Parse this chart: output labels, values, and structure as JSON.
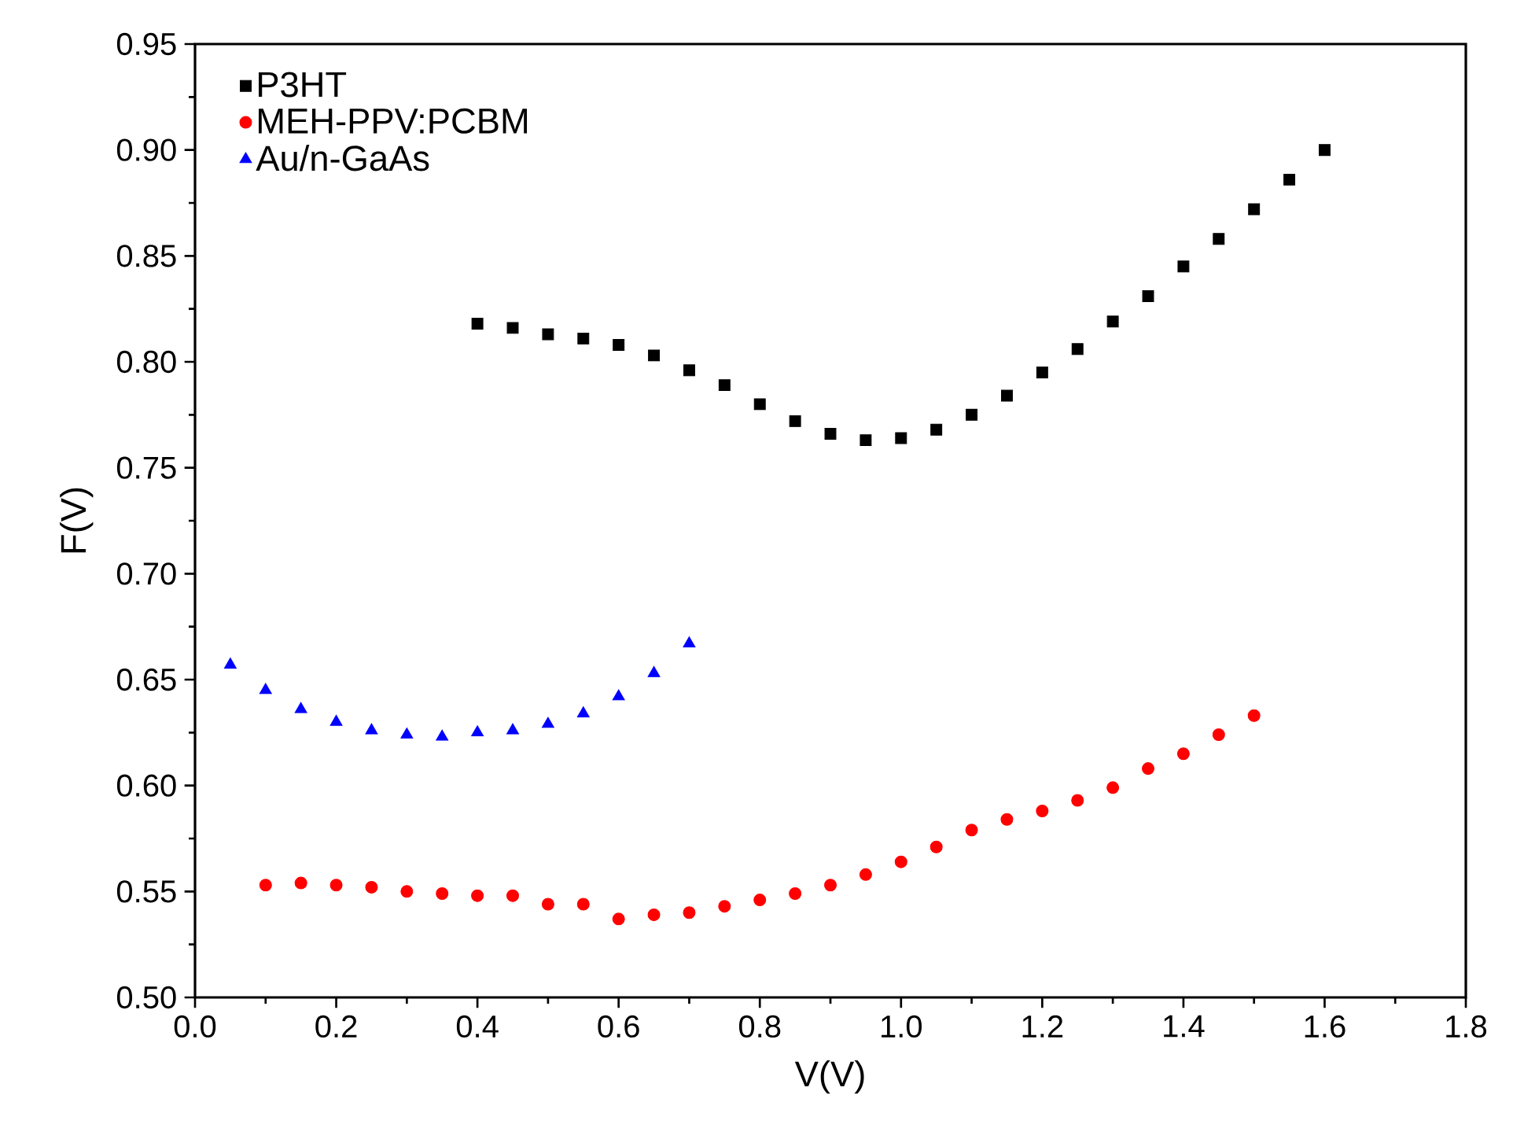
{
  "chart_data": {
    "type": "scatter",
    "xlabel": "V(V)",
    "ylabel": "F(V)",
    "xlim": [
      0.0,
      1.8
    ],
    "xticks": [
      {
        "value": 0.0,
        "label": "0.0"
      },
      0.2,
      0.4,
      0.6,
      0.8,
      {
        "value": 1.0,
        "label": "1.0"
      },
      1.2,
      1.4,
      1.6,
      1.8
    ],
    "ylim": [
      0.5,
      0.95
    ],
    "yticks": [
      {
        "value": 0.5,
        "label": "0.50"
      },
      0.55,
      {
        "value": 0.6,
        "label": "0.60"
      },
      0.65,
      {
        "value": 0.7,
        "label": "0.70"
      },
      0.75,
      {
        "value": 0.8,
        "label": "0.80"
      },
      0.85,
      {
        "value": 0.9,
        "label": "0.90"
      },
      0.95
    ],
    "legend": "top left",
    "grid": false,
    "series": [
      {
        "name": "P3HT",
        "color": "#000000",
        "marker": "square",
        "x": [
          0.4,
          0.45,
          0.5,
          0.55,
          0.6,
          0.65,
          0.7,
          0.75,
          0.8,
          0.85,
          0.9,
          0.95,
          1.0,
          1.05,
          1.1,
          1.15,
          1.2,
          1.25,
          1.3,
          1.35,
          1.4,
          1.45,
          1.5,
          1.55,
          1.6
        ],
        "values": [
          0.818,
          0.816,
          0.813,
          0.811,
          0.808,
          0.803,
          0.796,
          0.789,
          0.78,
          0.772,
          0.766,
          0.763,
          0.764,
          0.768,
          0.775,
          0.784,
          0.795,
          0.806,
          0.819,
          0.831,
          0.845,
          0.858,
          0.872,
          0.886,
          0.9
        ]
      },
      {
        "name": "MEH-PPV:PCBM",
        "color": "#ff0000",
        "marker": "circle",
        "x": [
          0.1,
          0.15,
          0.2,
          0.25,
          0.3,
          0.35,
          0.4,
          0.45,
          0.5,
          0.55,
          0.6,
          0.65,
          0.7,
          0.75,
          0.8,
          0.85,
          0.9,
          0.95,
          1.0,
          1.05,
          1.1,
          1.15,
          1.2,
          1.25,
          1.3,
          1.35,
          1.4,
          1.45,
          1.5
        ],
        "values": [
          0.553,
          0.554,
          0.553,
          0.552,
          0.55,
          0.549,
          0.548,
          0.548,
          0.544,
          0.544,
          0.537,
          0.539,
          0.54,
          0.543,
          0.546,
          0.549,
          0.553,
          0.558,
          0.564,
          0.571,
          0.579,
          0.584,
          0.588,
          0.593,
          0.599,
          0.608,
          0.615,
          0.624,
          0.633
        ]
      },
      {
        "name": "Au/n-GaAs",
        "color": "#0000ff",
        "marker": "triangle",
        "x": [
          0.05,
          0.1,
          0.15,
          0.2,
          0.25,
          0.3,
          0.35,
          0.4,
          0.45,
          0.5,
          0.55,
          0.6,
          0.65,
          0.7
        ],
        "values": [
          0.657,
          0.645,
          0.636,
          0.63,
          0.626,
          0.624,
          0.623,
          0.625,
          0.626,
          0.629,
          0.634,
          0.642,
          0.653,
          0.667
        ]
      }
    ]
  }
}
